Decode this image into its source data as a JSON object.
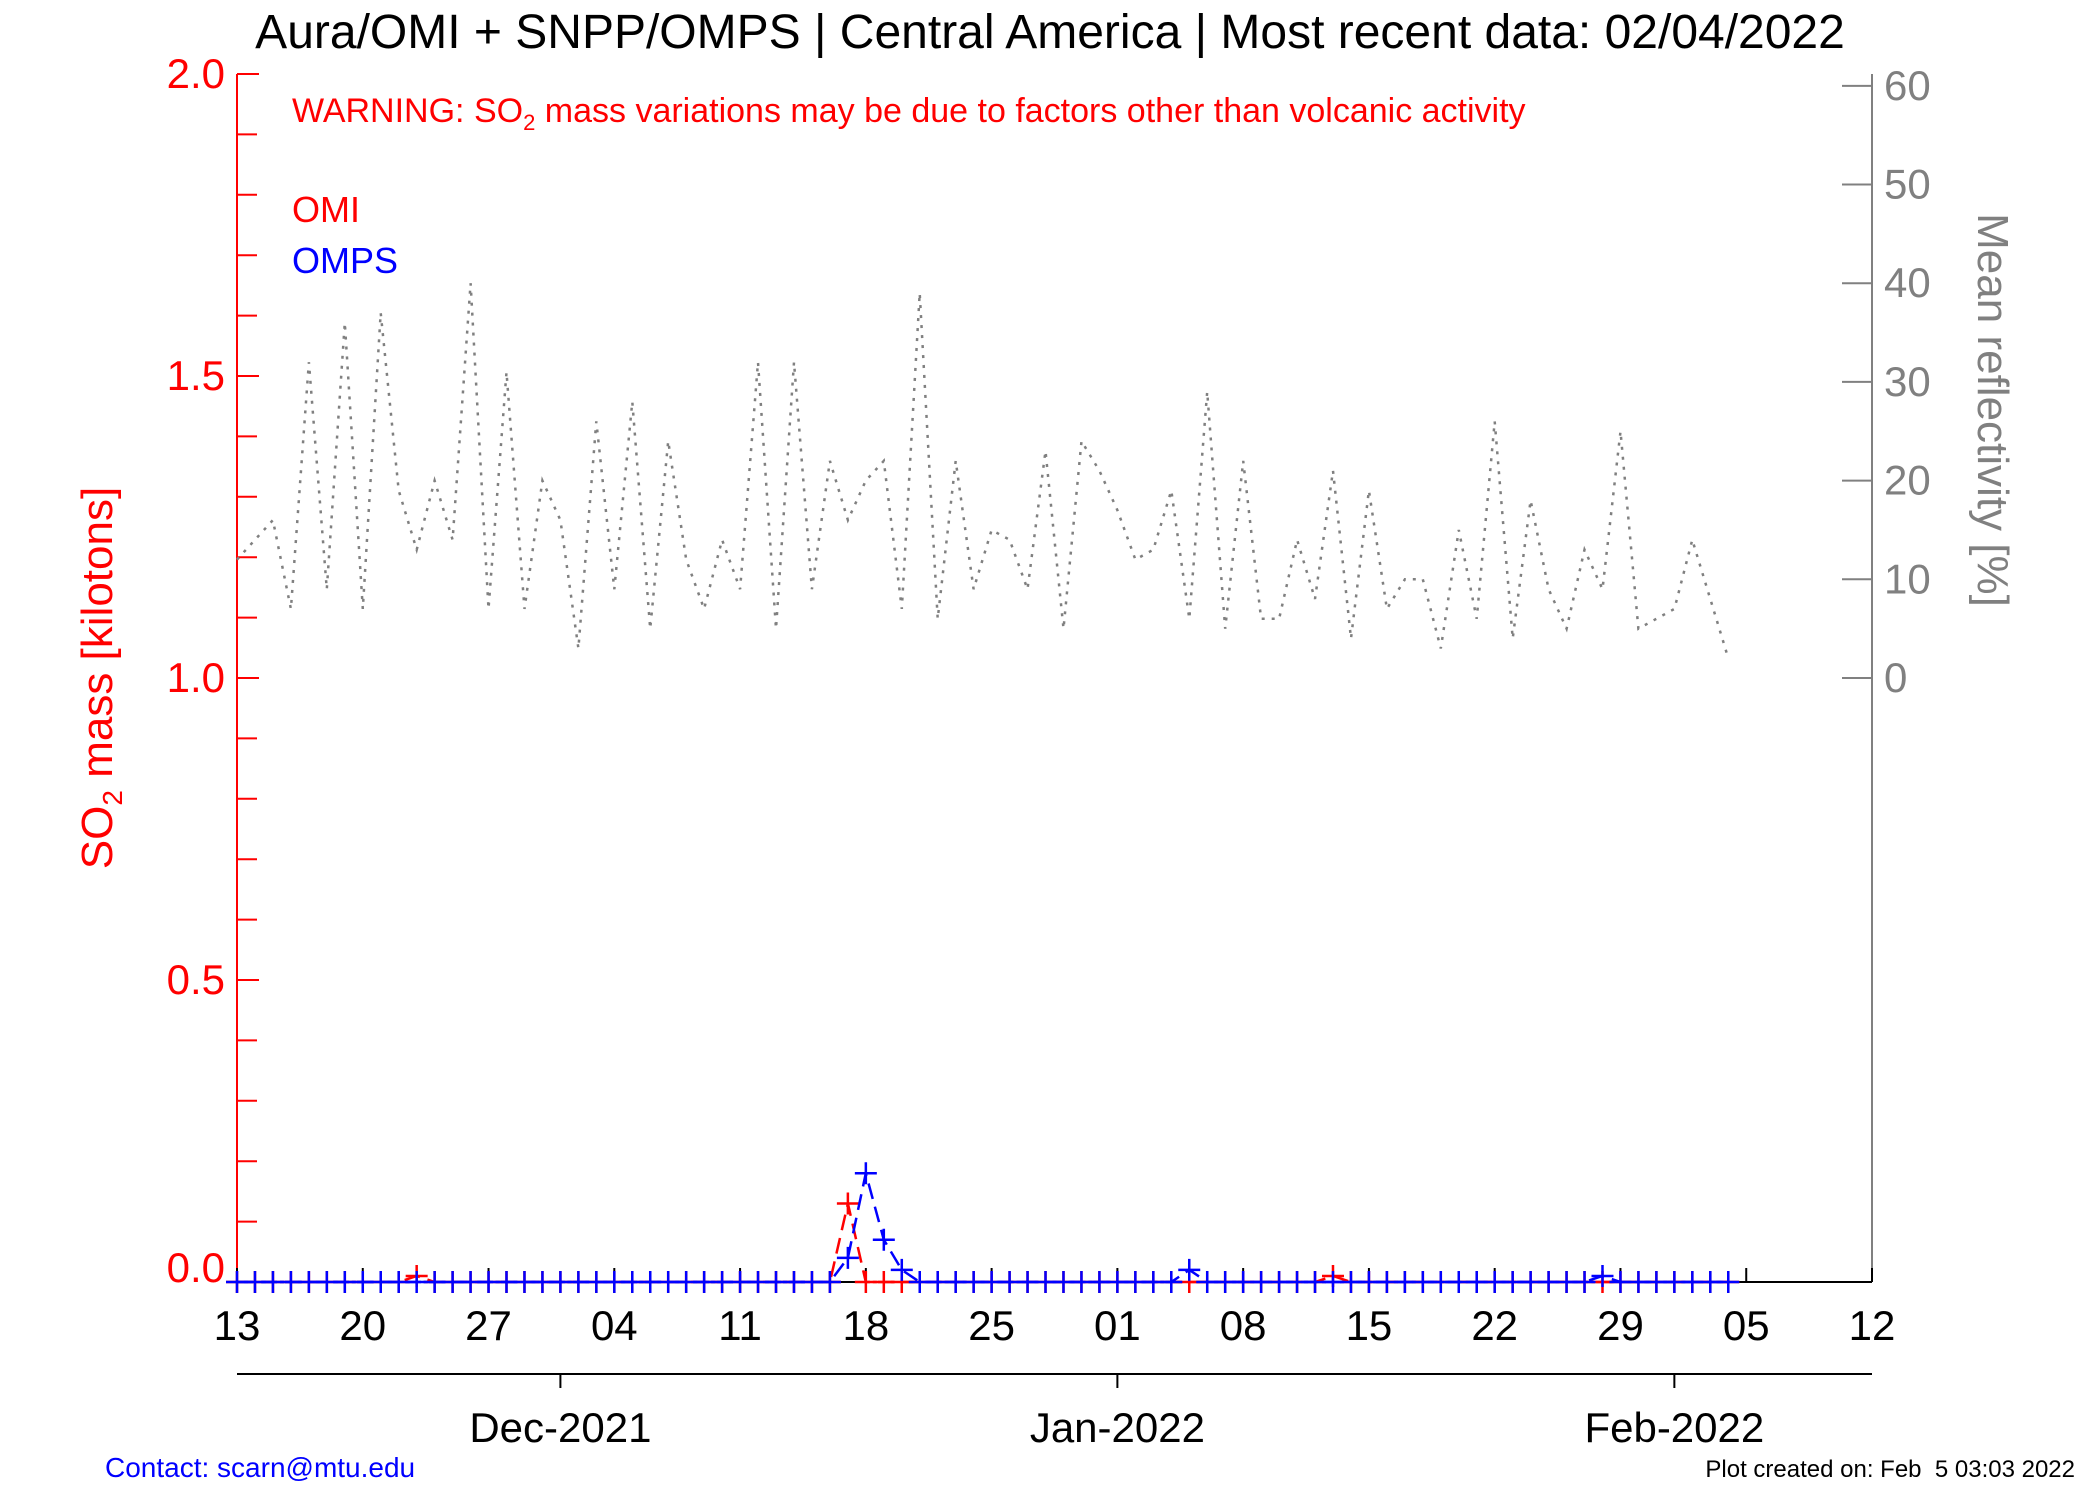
{
  "chart_data": {
    "type": "line",
    "title": "Aura/OMI + SNPP/OMPS | Central America | Most recent data: 02/04/2022",
    "warning": [
      "WARNING: SO",
      "2",
      " mass variations may be due to factors other than volcanic activity"
    ],
    "y_label": [
      "SO",
      "2",
      " mass [kilotons]"
    ],
    "y2_label": "Mean reflectivity [%]",
    "contact": "Contact: scarn@mtu.edu",
    "created": "Plot created on: Feb  5 03:03 2022",
    "x": [
      "2021-11-13",
      "2021-11-14",
      "2021-11-15",
      "2021-11-16",
      "2021-11-17",
      "2021-11-18",
      "2021-11-19",
      "2021-11-20",
      "2021-11-21",
      "2021-11-22",
      "2021-11-23",
      "2021-11-24",
      "2021-11-25",
      "2021-11-26",
      "2021-11-27",
      "2021-11-28",
      "2021-11-29",
      "2021-11-30",
      "2021-12-01",
      "2021-12-02",
      "2021-12-03",
      "2021-12-04",
      "2021-12-05",
      "2021-12-06",
      "2021-12-07",
      "2021-12-08",
      "2021-12-09",
      "2021-12-10",
      "2021-12-11",
      "2021-12-12",
      "2021-12-13",
      "2021-12-14",
      "2021-12-15",
      "2021-12-16",
      "2021-12-17",
      "2021-12-18",
      "2021-12-19",
      "2021-12-20",
      "2021-12-21",
      "2021-12-22",
      "2021-12-23",
      "2021-12-24",
      "2021-12-25",
      "2021-12-26",
      "2021-12-27",
      "2021-12-28",
      "2021-12-29",
      "2021-12-30",
      "2021-12-31",
      "2022-01-01",
      "2022-01-02",
      "2022-01-03",
      "2022-01-04",
      "2022-01-05",
      "2022-01-06",
      "2022-01-07",
      "2022-01-08",
      "2022-01-09",
      "2022-01-10",
      "2022-01-11",
      "2022-01-12",
      "2022-01-13",
      "2022-01-14",
      "2022-01-15",
      "2022-01-16",
      "2022-01-17",
      "2022-01-18",
      "2022-01-19",
      "2022-01-20",
      "2022-01-21",
      "2022-01-22",
      "2022-01-23",
      "2022-01-24",
      "2022-01-25",
      "2022-01-26",
      "2022-01-27",
      "2022-01-28",
      "2022-01-29",
      "2022-01-30",
      "2022-01-31",
      "2022-02-01",
      "2022-02-02",
      "2022-02-03",
      "2022-02-04"
    ],
    "series": [
      {
        "color": "#808080",
        "axis": "y2",
        "dash": "dotted",
        "values": [
          12,
          14,
          16,
          7,
          32,
          9,
          36,
          7,
          37,
          19,
          13,
          20,
          14,
          40,
          7,
          31,
          7,
          20,
          16,
          3,
          26,
          9,
          28,
          5,
          24,
          12,
          7,
          14,
          9,
          32,
          5,
          32,
          9,
          22,
          16,
          20,
          22,
          7,
          39,
          6,
          22,
          9,
          15,
          14,
          9,
          23,
          5,
          24,
          21,
          17,
          12,
          13,
          19,
          6,
          29,
          5,
          22,
          6,
          6,
          14,
          8,
          21,
          4,
          19,
          7,
          10,
          10,
          3,
          15,
          6,
          26,
          4,
          18,
          9,
          5,
          13,
          9,
          25,
          5,
          6,
          7,
          14,
          8,
          2
        ]
      },
      {
        "name": "OMI",
        "color": "#ff0000",
        "dash": "dashed",
        "marker": "plus",
        "values": [
          0,
          0,
          0,
          0,
          0,
          0,
          0,
          0,
          0,
          0,
          0.01,
          0,
          0,
          0,
          0,
          0,
          0,
          0,
          0,
          0,
          0,
          0,
          0,
          0,
          0,
          0,
          0,
          0,
          0,
          0,
          0,
          0,
          0,
          0,
          0.13,
          0,
          0,
          0,
          0,
          0,
          0,
          0,
          0,
          0,
          0,
          0,
          0,
          0,
          0,
          0,
          0,
          0,
          0,
          0,
          0,
          0,
          0,
          0,
          0,
          0,
          0,
          0.01,
          0,
          0,
          0,
          0,
          0,
          0,
          0,
          0,
          0,
          0,
          0,
          0,
          0,
          0,
          0,
          0,
          0,
          0,
          0,
          0,
          0,
          0
        ]
      },
      {
        "name": "OMPS",
        "color": "#0000ff",
        "dash": "dashed",
        "marker": "plus",
        "values": [
          0,
          0,
          0,
          0,
          0,
          0,
          0,
          0,
          0,
          0,
          0,
          0,
          0,
          0,
          0,
          0,
          0,
          0,
          0,
          0,
          0,
          0,
          0,
          0,
          0,
          0,
          0,
          0,
          0,
          0,
          0,
          0,
          0,
          0,
          0.04,
          0.18,
          0.07,
          0.02,
          0,
          0,
          0,
          0,
          0,
          0,
          0,
          0,
          0,
          0,
          0,
          0,
          0,
          0,
          0,
          0.02,
          0,
          0,
          0,
          0,
          0,
          0,
          0,
          0,
          0,
          0,
          0,
          0,
          0,
          0,
          0,
          0,
          0,
          0,
          0,
          0,
          0,
          0,
          0.01,
          0,
          0,
          0,
          0,
          0,
          0,
          0
        ]
      }
    ],
    "xlim": [
      "2021-11-13",
      "2022-02-12"
    ],
    "xticks": [
      {
        "value": "2021-11-13",
        "label": "13"
      },
      {
        "value": "2021-11-20",
        "label": "20"
      },
      {
        "value": "2021-11-27",
        "label": "27"
      },
      {
        "value": "2021-12-04",
        "label": "04"
      },
      {
        "value": "2021-12-11",
        "label": "11"
      },
      {
        "value": "2021-12-18",
        "label": "18"
      },
      {
        "value": "2021-12-25",
        "label": "25"
      },
      {
        "value": "2022-01-01",
        "label": "01"
      },
      {
        "value": "2022-01-08",
        "label": "08"
      },
      {
        "value": "2022-01-15",
        "label": "15"
      },
      {
        "value": "2022-01-22",
        "label": "22"
      },
      {
        "value": "2022-01-29",
        "label": "29"
      },
      {
        "value": "2022-02-05",
        "label": "05"
      },
      {
        "value": "2022-02-12",
        "label": "12"
      }
    ],
    "month_ticks": [
      {
        "value": "2021-12-01",
        "label": "Dec-2021"
      },
      {
        "value": "2022-01-01",
        "label": "Jan-2022"
      },
      {
        "value": "2022-02-01",
        "label": "Feb-2022"
      }
    ],
    "ylim": [
      0,
      2
    ],
    "yticks": [
      {
        "value": 0,
        "label": "0.0"
      },
      {
        "value": 0.5,
        "label": "0.5"
      },
      {
        "value": 1,
        "label": "1.0"
      },
      {
        "value": 1.5,
        "label": "1.5"
      },
      {
        "value": 2,
        "label": "2.0"
      }
    ],
    "yminorticks": [
      0.1,
      0.2,
      0.3,
      0.4,
      0.6,
      0.7,
      0.8,
      0.9,
      1.1,
      1.2,
      1.3,
      1.4,
      1.6,
      1.7,
      1.8,
      1.9
    ],
    "y2lim": [
      -61.2,
      61.2
    ],
    "y2ticks": [
      0,
      10,
      20,
      30,
      40,
      50,
      60
    ],
    "y_color": "#ff0000",
    "y2_color": "#808080"
  }
}
